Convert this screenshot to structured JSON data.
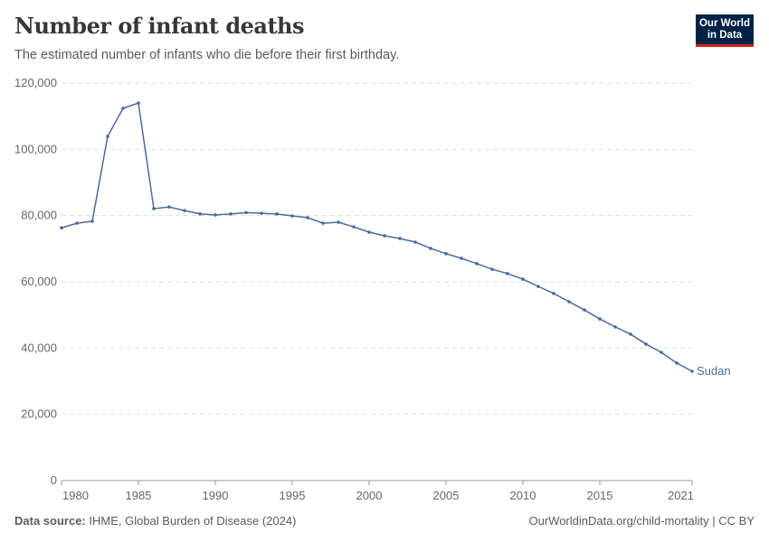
{
  "header": {
    "title": "Number of infant deaths",
    "subtitle": "The estimated number of infants who die before their first birthday.",
    "logo_text": "Our World in Data"
  },
  "footer": {
    "source_label": "Data source:",
    "source": "IHME, Global Burden of Disease (2024)",
    "url": "OurWorldinData.org/child-mortality | CC BY"
  },
  "chart_data": {
    "type": "line",
    "title": "Number of infant deaths",
    "xlabel": "",
    "ylabel": "",
    "ylim": [
      0,
      120000
    ],
    "xlim": [
      1980,
      2021
    ],
    "yticks": [
      0,
      20000,
      40000,
      60000,
      80000,
      100000,
      120000
    ],
    "ytick_labels": [
      "0",
      "20,000",
      "40,000",
      "60,000",
      "80,000",
      "100,000",
      "120,000"
    ],
    "xticks": [
      1980,
      1985,
      1990,
      1995,
      2000,
      2005,
      2010,
      2015,
      2021
    ],
    "grid": "horizontal dashed",
    "legend": "end-of-line label",
    "series": [
      {
        "name": "Sudan",
        "color": "#4c6a9c",
        "x": [
          1980,
          1981,
          1982,
          1983,
          1984,
          1985,
          1986,
          1987,
          1988,
          1989,
          1990,
          1991,
          1992,
          1993,
          1994,
          1995,
          1996,
          1997,
          1998,
          1999,
          2000,
          2001,
          2002,
          2003,
          2004,
          2005,
          2006,
          2007,
          2008,
          2009,
          2010,
          2011,
          2012,
          2013,
          2014,
          2015,
          2016,
          2017,
          2018,
          2019,
          2020,
          2021
        ],
        "values": [
          76300,
          77700,
          78300,
          103900,
          112400,
          114000,
          82100,
          82600,
          81500,
          80500,
          80200,
          80500,
          80900,
          80700,
          80500,
          79900,
          79400,
          77700,
          78000,
          76600,
          75000,
          73900,
          73100,
          72000,
          70100,
          68500,
          67100,
          65500,
          63800,
          62500,
          60800,
          58600,
          56500,
          54000,
          51500,
          48800,
          46400,
          44200,
          41200,
          38700,
          35500,
          33000
        ]
      }
    ]
  }
}
